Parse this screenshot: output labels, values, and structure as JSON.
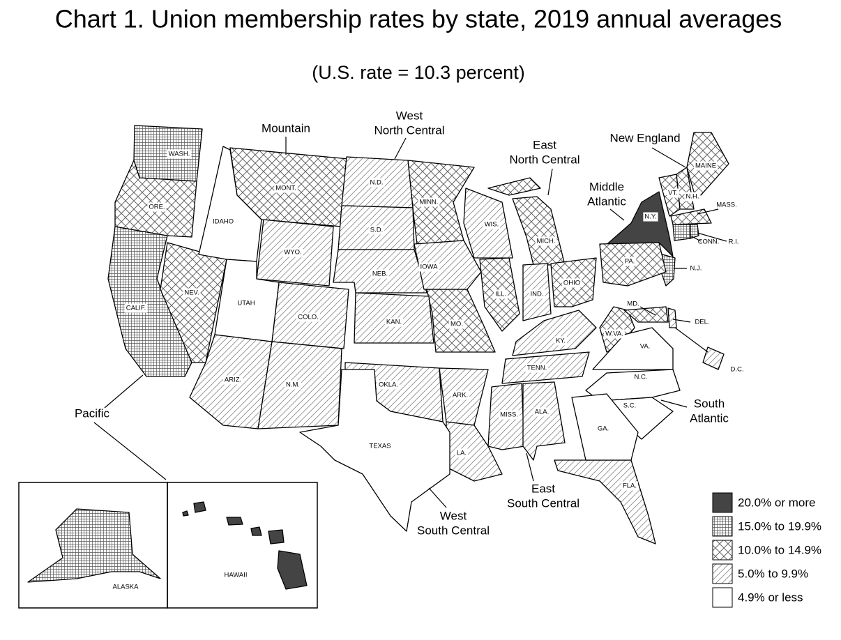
{
  "title": "Chart 1. Union membership rates by state, 2019 annual averages",
  "subtitle": "(U.S. rate = 10.3 percent)",
  "regions": [
    [
      "Pacific"
    ],
    [
      "Mountain"
    ],
    [
      "West",
      "North Central"
    ],
    [
      "East",
      "North Central"
    ],
    [
      "Middle",
      "Atlantic"
    ],
    [
      "New England"
    ],
    [
      "South",
      "Atlantic"
    ],
    [
      "East",
      "South Central"
    ],
    [
      "West",
      "South Central"
    ]
  ],
  "groups": [
    {
      "label": "20.0% or more",
      "fill": "solid",
      "states": [
        "N.Y.",
        "HAWAII"
      ]
    },
    {
      "label": "15.0% to 19.9%",
      "fill": "grid",
      "states": [
        "WASH.",
        "CALIF.",
        "N.J.",
        "ALASKA",
        "CONN.",
        "R.I."
      ]
    },
    {
      "label": "10.0% to 14.9%",
      "fill": "crosshatch",
      "states": [
        "ORE.",
        "MONT.",
        "NEV.",
        "MINN.",
        "MO.",
        "ILL.",
        "MICH.",
        "OHIO",
        "PA.",
        "W.VA.",
        "MD.",
        "MAINE",
        "N.H.",
        "VT.",
        "MASS."
      ]
    },
    {
      "label": "5.0% to 9.9%",
      "fill": "diagonal",
      "states": [
        "N.D.",
        "S.D.",
        "NEB.",
        "KAN.",
        "IOWA",
        "WIS.",
        "IND.",
        "KY.",
        "TENN.",
        "WYO.",
        "COLO.",
        "ARIZ.",
        "N.M.",
        "OKLA.",
        "ARK.",
        "LA.",
        "MISS.",
        "ALA.",
        "FLA.",
        "DEL.",
        "D.C."
      ]
    },
    {
      "label": "4.9% or less",
      "fill": "none",
      "states": [
        "IDAHO",
        "UTAH",
        "TEXAS",
        "N.C.",
        "S.C.",
        "GA.",
        "VA."
      ]
    }
  ]
}
